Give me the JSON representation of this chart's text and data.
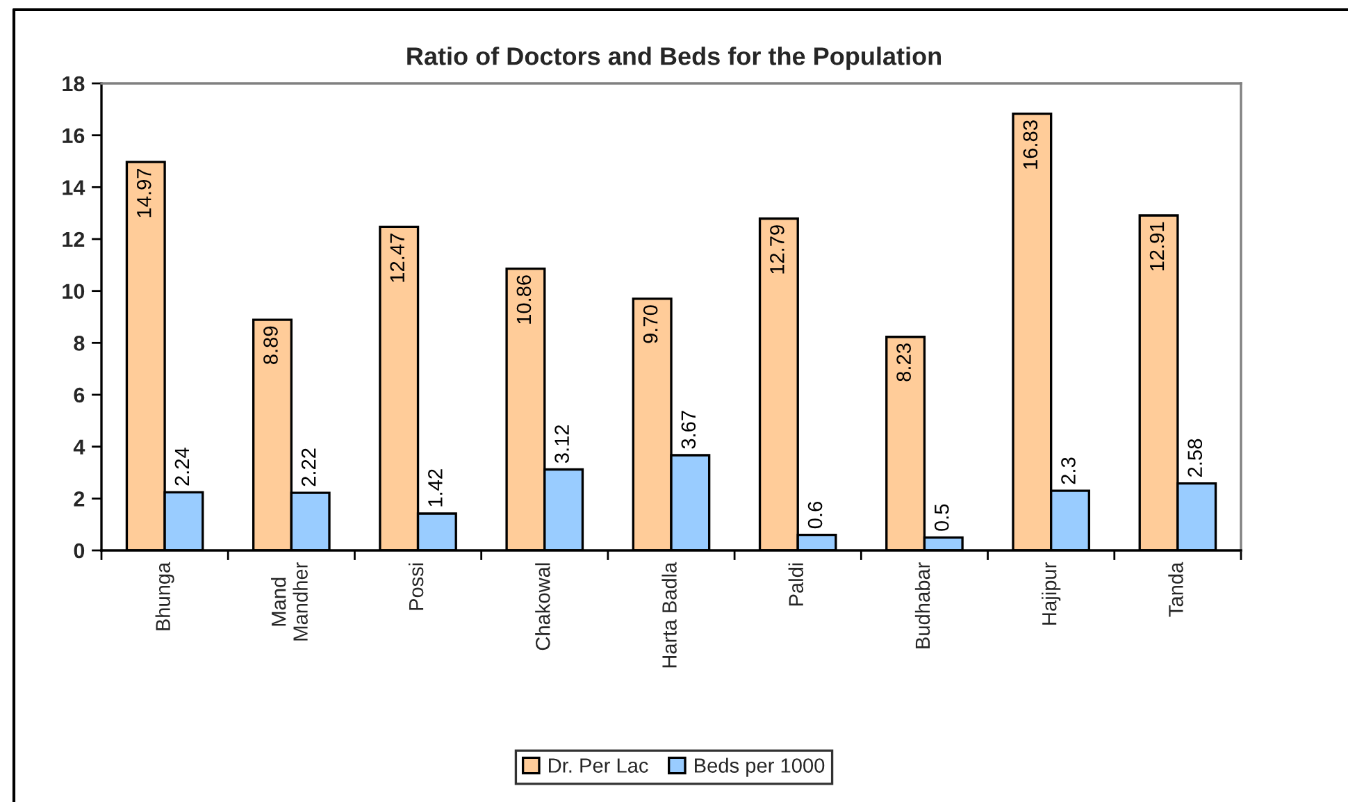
{
  "chart_data": {
    "type": "bar",
    "title": "Ratio of Doctors and Beds for the Population",
    "categories": [
      "Bhunga",
      "Mand\nMandher",
      "Possi",
      "Chakowal",
      "Harta Badla",
      "Paldi",
      "Budhabar",
      "Hajipur",
      "Tanda"
    ],
    "series": [
      {
        "name": "Dr. Per Lac",
        "color": "#ffcc99",
        "values": [
          14.97,
          8.89,
          12.47,
          10.86,
          9.7,
          12.79,
          8.23,
          16.83,
          12.91
        ],
        "value_labels": [
          "14.97",
          "8.89",
          "12.47",
          "10.86",
          "9.70",
          "12.79",
          "8.23",
          "16.83",
          "12.91"
        ]
      },
      {
        "name": "Beds per 1000",
        "color": "#99ccff",
        "values": [
          2.24,
          2.22,
          1.42,
          3.12,
          3.67,
          0.6,
          0.5,
          2.3,
          2.58
        ],
        "value_labels": [
          "2.24",
          "2.22",
          "1.42",
          "3.12",
          "3.67",
          "0.6",
          "0.5",
          "2.3",
          "2.58"
        ]
      }
    ],
    "ylim": [
      0,
      18
    ],
    "yticks": [
      0,
      2,
      4,
      6,
      8,
      10,
      12,
      14,
      16,
      18
    ],
    "legend": "bottom"
  }
}
